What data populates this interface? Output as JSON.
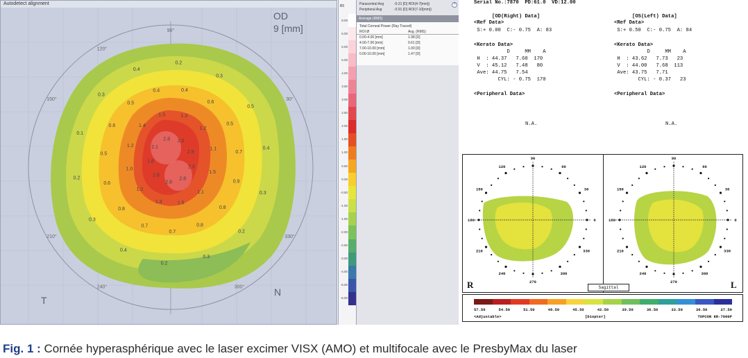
{
  "topo": {
    "title": "Autodetect alignment",
    "eye": "OD",
    "zone": "9 [mm]",
    "temporal": "T",
    "nasal": "N",
    "angle_labels": [
      "90°",
      "120°",
      "150°",
      "30°",
      "210°",
      "330°",
      "240°",
      "300°"
    ],
    "ring_values": {
      "center": [
        "2.3",
        "2.8",
        "2.8",
        "2.8",
        "1.8",
        "2.1",
        "2.8",
        "2.0",
        "2.9"
      ],
      "orange": [
        "1.5",
        "1.1",
        "1.5",
        "1.3",
        "1.2",
        "1.0",
        "1.2",
        "1.4",
        "1.5",
        "1.3",
        "1.2",
        "1.1"
      ],
      "yellow": [
        "0.9",
        "0.8",
        "0.8",
        "0.7",
        "0.7",
        "0.8",
        "0.6",
        "0.5",
        "0.6",
        "0.5",
        "0.4",
        "0.4",
        "0.6",
        "0.5",
        "0.7"
      ],
      "outer": [
        "0.3",
        "0.2",
        "0.3",
        "0.2",
        "0.4",
        "0.3",
        "0.2",
        "0.1",
        "0.3",
        "0.4",
        "0.2",
        "0.3",
        "0.5",
        "0.4"
      ]
    }
  },
  "scale": {
    "top_label": "B5",
    "values": [
      "8.00",
      "6.00",
      "6.00",
      "5.00",
      "4.00",
      "3.50",
      "3.00",
      "2.50",
      "2.00",
      "1.50",
      "1.00",
      "0.50",
      "0.00",
      "-0.50",
      "-1.00",
      "-1.50",
      "-2.00",
      "-2.50",
      "-3.00",
      "-4.00",
      "-5.00",
      "-6.00"
    ],
    "colors": [
      "#ffffff",
      "#fde8ec",
      "#fbd3da",
      "#f8bcc6",
      "#f49fb0",
      "#ef8396",
      "#ea6679",
      "#e2474f",
      "#dd2a2a",
      "#e54f22",
      "#ee7c1f",
      "#f6a61f",
      "#f8cf2c",
      "#e8e53a",
      "#c9e04a",
      "#a6d24f",
      "#7cc25c",
      "#57ad6a",
      "#3f9a7c",
      "#3a79a8",
      "#3a55a8",
      "#33308e"
    ]
  },
  "info": {
    "paracentral": {
      "label": "Paracentral Avg",
      "value": "-0.21 [D] ROI(4-7[mm])"
    },
    "peripheral": {
      "label": "Peripheral Avg",
      "value": "-0.91 [D] ROI(7-10[mm])"
    },
    "average_header": "Average (RMS)",
    "table_title": "Total Corneal Power (Ray Traced)",
    "columns": [
      "ROI Ø",
      "Avg. (RMS)"
    ],
    "rows": [
      [
        "0.00-4.00 [mm]",
        "1.98 [D]"
      ],
      [
        "4.00-7.00 [mm]",
        "0.61 [D]"
      ],
      [
        "7.00-10.00 [mm]",
        "1.00 [D]"
      ],
      [
        "0.00-10.00 [mm]",
        "1.47 [D]"
      ]
    ]
  },
  "printout": {
    "serial": "Serial No.:7870  PD:61.0  VD:12.00",
    "od": {
      "title": "[OD(Right) Data]",
      "ref_title": "<Ref Data>",
      "ref_line": " S:+ 0.00  C:- 0.75  A: 83",
      "kerato_title": "<Kerato Data>",
      "kerato_header": "           D     MM    A",
      "h": " H  : 44.37   7.60  170",
      "v": " V  : 45.12   7.48   80",
      "ave": " Ave: 44.75   7.54",
      "cyl": "        CYL: - 0.75  170",
      "peri_title": "<Peripheral Data>",
      "na": "N.A."
    },
    "os": {
      "title": "[OS(Left) Data]",
      "ref_title": "<Ref Data>",
      "ref_line": " S:+ 0.50  C:- 0.75  A: 84",
      "kerato_title": "<Kerato Data>",
      "kerato_header": "           D     MM    A",
      "h": " H  : 43.62   7.73   23",
      "v": " V  : 44.00   7.68  113",
      "ave": " Ave: 43.75   7.71",
      "cyl": "        CYL: - 0.37   23",
      "peri_title": "<Peripheral Data>",
      "na": "N.A."
    },
    "sagittal": {
      "label": "Sagittal",
      "right_letter": "R",
      "left_letter": "L",
      "angles": [
        "90",
        "120",
        "60",
        "150",
        "30",
        "180",
        "0",
        "210",
        "330",
        "240",
        "300",
        "270"
      ]
    },
    "legend": {
      "values": [
        "57.50",
        "54.50",
        "51.50",
        "48.50",
        "45.50",
        "42.50",
        "39.50",
        "36.50",
        "33.50",
        "30.50",
        "27.50"
      ],
      "colors": [
        "#7a1a14",
        "#b81f1f",
        "#e23a23",
        "#f06a22",
        "#f6a126",
        "#f7d33c",
        "#d8e33f",
        "#a6d24a",
        "#71bf5c",
        "#3fae6a",
        "#2f9f9a",
        "#3490d6",
        "#3a58c3",
        "#2a2f9b"
      ],
      "adjustable": "<Adjustable>",
      "unit": "[Diopter]",
      "device": "TOPCON KR-7000P"
    }
  },
  "caption": {
    "fig": "Fig. 1 :",
    "text": " Cornée hyperasphérique avec le laser excimer VISX (AMO) et multifocale avec le PresbyMax du laser"
  }
}
